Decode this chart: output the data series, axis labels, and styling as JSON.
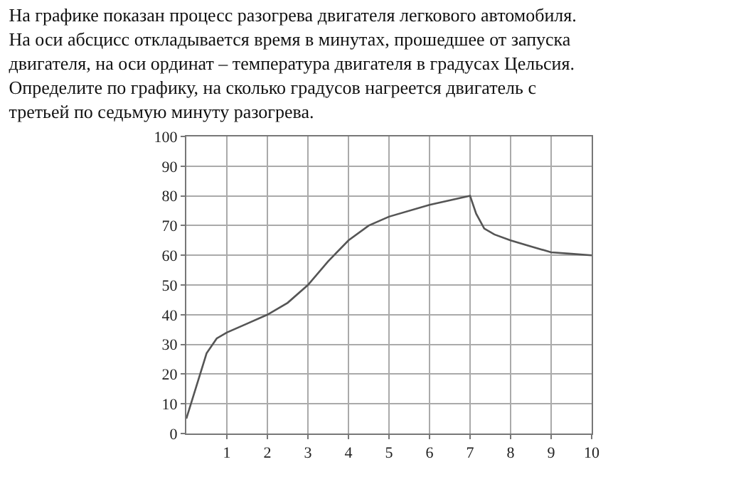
{
  "chart_data": {
    "type": "line",
    "title": "На графике показан процесс разогрева двигателя легкового автомобиля. На оси абсцисс откладывается время в минутах, прошедшее от запуска двигателя, на оси ординат – температура двигателя в градусах Цельсия. Определите по графику, на сколько градусов нагреется двигатель с третьей по седьмую минуту разогрева.",
    "x": [
      0,
      0.25,
      0.5,
      0.75,
      1,
      1.5,
      2,
      2.5,
      3,
      3.5,
      4,
      4.5,
      5,
      6,
      7,
      7.15,
      7.35,
      7.6,
      8,
      8.5,
      9,
      9.5,
      10
    ],
    "series": [
      {
        "color": "#555555",
        "values": [
          5,
          16,
          27,
          32,
          34,
          37,
          40,
          44,
          50,
          58,
          65,
          70,
          73,
          77,
          80,
          74,
          69,
          67,
          65,
          63,
          61,
          60.5,
          60
        ]
      }
    ],
    "xlim": [
      0,
      10
    ],
    "xticks": [
      1,
      2,
      3,
      4,
      5,
      6,
      7,
      8,
      9,
      10
    ],
    "ylim": [
      0,
      100
    ],
    "yticks": [
      0,
      10,
      20,
      30,
      40,
      50,
      60,
      70,
      80,
      90,
      100
    ],
    "grid": true,
    "marker": "none",
    "line_style": "solid"
  }
}
